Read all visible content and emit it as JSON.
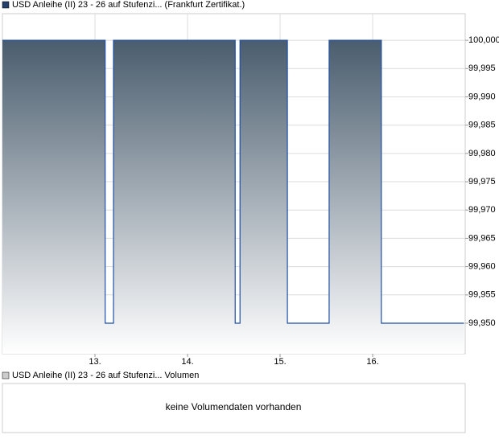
{
  "chart_data": {
    "type": "line",
    "series": [
      {
        "name": "USD Anleihe (II) 23 - 26 auf Stufenzi... (Frankfurt Zertifikat.)",
        "color": "#1f4fa8",
        "x": [
          12.0,
          13.11,
          13.11,
          13.2,
          13.2,
          14.515,
          14.515,
          14.567,
          14.567,
          15.079,
          15.079,
          15.53,
          15.53,
          16.094,
          16.094,
          16.987
        ],
        "values": [
          100,
          100,
          99.95,
          99.95,
          100,
          100,
          99.95,
          99.95,
          100,
          100,
          99.95,
          99.95,
          100,
          100,
          99.95,
          99.95
        ]
      }
    ],
    "area_color": "#4a5d6e",
    "xlim": [
      12,
      17
    ],
    "xticks": [
      {
        "value": 13,
        "label": "13."
      },
      {
        "value": 14,
        "label": "14."
      },
      {
        "value": 15,
        "label": "15."
      },
      {
        "value": 16,
        "label": "16."
      }
    ],
    "ylim": [
      99.9446,
      100.0047
    ],
    "yticks": [
      {
        "value": 99.95,
        "label": "99,950"
      },
      {
        "value": 99.955,
        "label": "99,955"
      },
      {
        "value": 99.96,
        "label": "99,960"
      },
      {
        "value": 99.965,
        "label": "99,965"
      },
      {
        "value": 99.97,
        "label": "99,970"
      },
      {
        "value": 99.975,
        "label": "99,975"
      },
      {
        "value": 99.98,
        "label": "99,980"
      },
      {
        "value": 99.985,
        "label": "99,985"
      },
      {
        "value": 99.99,
        "label": "99,990"
      },
      {
        "value": 99.995,
        "label": "99,995"
      },
      {
        "value": 100,
        "label": "100,000"
      }
    ],
    "grid": true
  },
  "volume_panel": {
    "legend": "USD Anleihe (II) 23 - 26 auf Stufenzi... Volumen",
    "message": "keine Volumendaten vorhanden"
  }
}
